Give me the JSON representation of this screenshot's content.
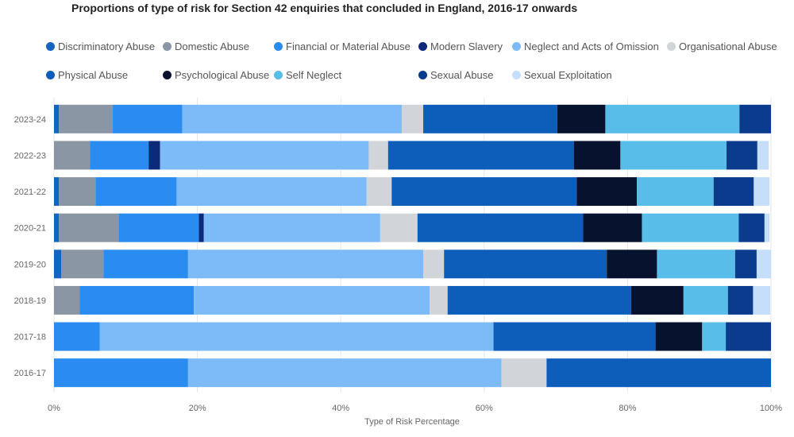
{
  "chart_data": {
    "type": "bar",
    "orientation": "horizontal",
    "stacked": true,
    "title": "Proportions of type of risk for Section 42 enquiries that concluded in England, 2016-17 onwards",
    "xlabel": "Type of Risk Percentage",
    "ylabel": "",
    "xlim": [
      0,
      100
    ],
    "x_ticks": [
      "0%",
      "20%",
      "40%",
      "60%",
      "80%",
      "100%"
    ],
    "grid": true,
    "legend_position": "top",
    "categories": [
      "2023-24",
      "2022-23",
      "2021-22",
      "2020-21",
      "2019-20",
      "2018-19",
      "2017-18",
      "2016-17"
    ],
    "series": [
      {
        "name": "Discriminatory Abuse",
        "color": "#1565C0",
        "values": [
          0.7,
          0,
          0.7,
          0.7,
          1.0,
          0,
          0,
          0
        ]
      },
      {
        "name": "Domestic Abuse",
        "color": "#8A96A3",
        "values": [
          7.5,
          5.0,
          5.1,
          8.3,
          5.9,
          3.6,
          0,
          0
        ]
      },
      {
        "name": "Financial or Material Abuse",
        "color": "#2A8CF0",
        "values": [
          9.7,
          8.2,
          11.3,
          11.2,
          11.8,
          15.9,
          6.4,
          18.7
        ]
      },
      {
        "name": "Modern Slavery",
        "color": "#0D2A7A",
        "values": [
          0,
          1.6,
          0,
          0.7,
          0,
          0,
          0,
          0
        ]
      },
      {
        "name": "Neglect and Acts of Omission",
        "color": "#7DBBF8",
        "values": [
          30.6,
          29.1,
          26.5,
          24.6,
          32.8,
          32.9,
          54.9,
          43.7
        ]
      },
      {
        "name": "Organisational Abuse",
        "color": "#D1D5D9",
        "values": [
          3.0,
          2.7,
          3.5,
          5.2,
          2.9,
          2.5,
          0,
          6.3
        ]
      },
      {
        "name": "Physical Abuse",
        "color": "#0D5EBB",
        "values": [
          18.7,
          25.9,
          25.8,
          23.1,
          22.7,
          25.6,
          22.6,
          31.3
        ]
      },
      {
        "name": "Psychological Abuse",
        "color": "#07122E",
        "values": [
          6.7,
          6.5,
          8.4,
          8.2,
          7.0,
          7.3,
          6.5,
          0
        ]
      },
      {
        "name": "Self Neglect",
        "color": "#58BDE8",
        "values": [
          18.7,
          14.8,
          10.7,
          13.5,
          10.9,
          6.2,
          3.3,
          0
        ]
      },
      {
        "name": "Sexual Abuse",
        "color": "#0A3B8C",
        "values": [
          4.4,
          4.3,
          5.6,
          3.6,
          3.0,
          3.5,
          6.3,
          0
        ]
      },
      {
        "name": "Sexual Exploitation",
        "color": "#C5DFFB",
        "values": [
          0,
          1.6,
          2.2,
          0.7,
          2.0,
          2.4,
          0,
          0
        ]
      }
    ]
  }
}
